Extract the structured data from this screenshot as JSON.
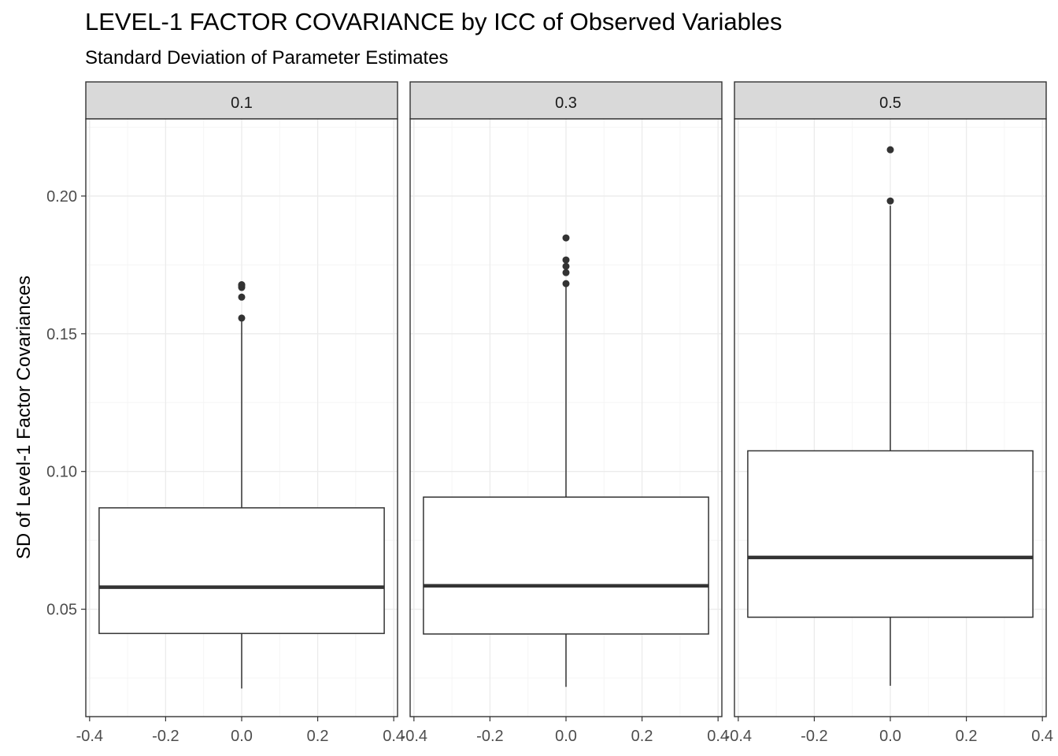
{
  "chart_data": {
    "type": "boxplot",
    "title": "LEVEL-1 FACTOR COVARIANCE by ICC of Observed Variables",
    "subtitle": "Standard Deviation of Parameter Estimates",
    "xlabel": "",
    "ylabel": "SD of Level-1 Factor Covariances",
    "ylim": [
      0.011,
      0.228
    ],
    "xlim": [
      -0.41,
      0.41
    ],
    "y_ticks": [
      0.05,
      0.1,
      0.15,
      0.2
    ],
    "y_tick_labels": [
      "0.05",
      "0.10",
      "0.15",
      "0.20"
    ],
    "x_ticks": [
      -0.4,
      -0.2,
      0.0,
      0.2,
      0.4
    ],
    "x_tick_labels": [
      "-0.4",
      "-0.2",
      "0.0",
      "0.2",
      "0.4"
    ],
    "box_half_width": 0.375,
    "grid": true,
    "facets": [
      {
        "label": "0.1",
        "box": {
          "whisker_low": 0.0212,
          "q1": 0.0412,
          "median": 0.058,
          "q3": 0.0868,
          "whisker_high": 0.1555
        },
        "outliers": [
          0.1557,
          0.1633,
          0.1668,
          0.1675,
          0.1678
        ]
      },
      {
        "label": "0.3",
        "box": {
          "whisker_low": 0.0218,
          "q1": 0.041,
          "median": 0.0585,
          "q3": 0.0907,
          "whisker_high": 0.1675
        },
        "outliers": [
          0.1682,
          0.1722,
          0.1745,
          0.1768,
          0.1848
        ]
      },
      {
        "label": "0.5",
        "box": {
          "whisker_low": 0.0222,
          "q1": 0.0471,
          "median": 0.0688,
          "q3": 0.1075,
          "whisker_high": 0.1965
        },
        "outliers": [
          0.1982,
          0.2168
        ]
      }
    ],
    "colors": {
      "panel_border": "#333333",
      "grid_major": "#ebebeb",
      "grid_minor": "#f5f5f5",
      "strip_fill": "#d9d9d9",
      "box_stroke": "#333333",
      "box_fill": "#ffffff",
      "tick_text": "#4d4d4d"
    }
  }
}
